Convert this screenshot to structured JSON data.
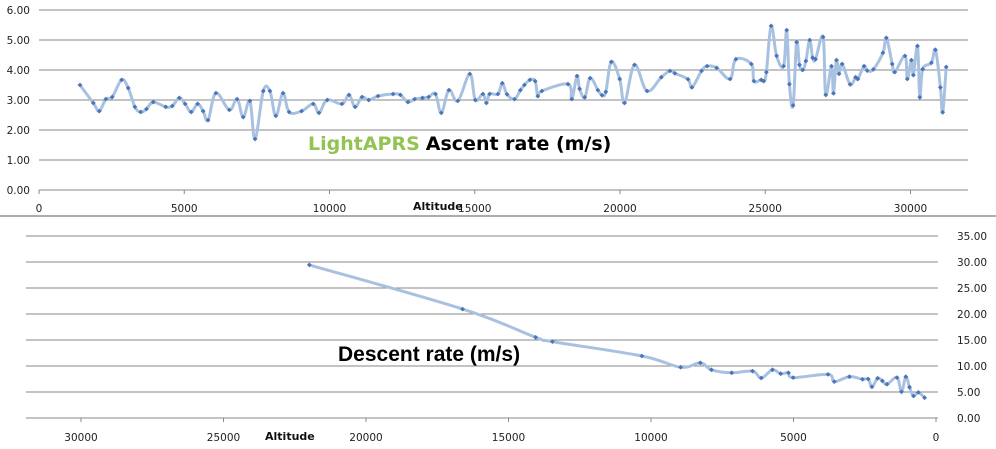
{
  "colors": {
    "line": "#a9c1e0",
    "marker": "#4a76b8",
    "grid": "#878787",
    "title_accent": "#92c353",
    "title": "#000000"
  },
  "chart_data": [
    {
      "type": "line",
      "title_accent": "LightAPRS",
      "title": "Ascent rate (m/s)",
      "xlabel": "Altitude",
      "ylabel": "",
      "xlim": [
        0,
        32000
      ],
      "ylim": [
        0,
        6
      ],
      "x_reversed": false,
      "y_axis_side": "left",
      "grid": true,
      "x_ticks": [
        "0",
        "5000",
        "10000",
        "15000",
        "20000",
        "25000",
        "30000"
      ],
      "x_tick_values": [
        0,
        5000,
        10000,
        15000,
        20000,
        25000,
        30000
      ],
      "y_ticks": [
        "0.00",
        "1.00",
        "2.00",
        "3.00",
        "4.00",
        "5.00",
        "6.00"
      ],
      "y_tick_values": [
        0,
        1,
        2,
        3,
        4,
        5,
        6
      ],
      "x": [
        1410,
        1870,
        2075,
        2300,
        2520,
        2845,
        3070,
        3300,
        3500,
        3700,
        3930,
        4360,
        4590,
        4830,
        5030,
        5240,
        5460,
        5650,
        5820,
        6090,
        6550,
        6820,
        7030,
        7260,
        7440,
        7720,
        7950,
        8150,
        8400,
        8610,
        9040,
        9440,
        9640,
        9920,
        10430,
        10670,
        10880,
        11120,
        11350,
        11670,
        12190,
        12440,
        12700,
        12930,
        13200,
        13410,
        13650,
        13850,
        14110,
        14420,
        14830,
        15020,
        15280,
        15400,
        15510,
        15800,
        15950,
        16110,
        16370,
        16570,
        16710,
        16900,
        17080,
        17170,
        17310,
        18210,
        18340,
        18520,
        18610,
        18790,
        18970,
        19240,
        19380,
        19510,
        19700,
        19990,
        20160,
        20500,
        20930,
        21420,
        21720,
        21890,
        22340,
        22480,
        22810,
        23000,
        23330,
        23790,
        23990,
        24520,
        24610,
        24860,
        24950,
        25040,
        25200,
        25390,
        25630,
        25740,
        25830,
        25960,
        26080,
        26180,
        26290,
        26400,
        26530,
        26630,
        26730,
        26990,
        27080,
        27280,
        27350,
        27450,
        27540,
        27650,
        27920,
        28110,
        28190,
        28400,
        28510,
        28720,
        29050,
        29170,
        29370,
        29460,
        29810,
        29890,
        30030,
        30100,
        30240,
        30320,
        30420,
        30720,
        30860,
        31030,
        31110,
        31230
      ],
      "y": [
        3.5,
        2.9,
        2.63,
        3.03,
        3.1,
        3.67,
        3.4,
        2.77,
        2.6,
        2.7,
        2.93,
        2.77,
        2.8,
        3.07,
        2.87,
        2.6,
        2.87,
        2.63,
        2.33,
        3.23,
        2.67,
        3.03,
        2.43,
        2.97,
        1.7,
        3.3,
        3.3,
        2.47,
        3.23,
        2.6,
        2.63,
        2.87,
        2.57,
        3.0,
        2.87,
        3.17,
        2.77,
        3.1,
        3.0,
        3.13,
        3.2,
        3.17,
        2.93,
        3.03,
        3.07,
        3.1,
        3.2,
        2.57,
        3.33,
        2.97,
        3.87,
        3.0,
        3.2,
        2.9,
        3.2,
        3.2,
        3.56,
        3.19,
        3.03,
        3.33,
        3.5,
        3.67,
        3.63,
        3.13,
        3.3,
        3.53,
        3.03,
        3.8,
        3.37,
        3.09,
        3.73,
        3.33,
        3.16,
        3.27,
        4.27,
        3.7,
        2.9,
        4.17,
        3.3,
        3.76,
        3.97,
        3.89,
        3.69,
        3.42,
        3.97,
        4.13,
        4.07,
        3.7,
        4.36,
        4.2,
        3.63,
        3.67,
        3.63,
        3.93,
        5.47,
        4.47,
        4.13,
        5.33,
        3.53,
        2.82,
        4.93,
        4.17,
        4.0,
        4.3,
        5.0,
        4.41,
        4.36,
        5.1,
        3.17,
        4.13,
        3.22,
        4.33,
        3.87,
        4.2,
        3.52,
        3.76,
        3.7,
        4.13,
        3.98,
        4.02,
        4.57,
        5.07,
        4.2,
        3.93,
        4.47,
        3.7,
        4.33,
        3.83,
        4.8,
        3.09,
        4.03,
        4.24,
        4.67,
        3.42,
        2.59,
        4.1
      ]
    },
    {
      "type": "line",
      "title": "Descent rate (m/s)",
      "xlabel": "Altitude",
      "ylabel": "",
      "xlim": [
        0,
        32000
      ],
      "ylim": [
        0,
        35
      ],
      "x_reversed": true,
      "y_axis_side": "right",
      "grid": true,
      "x_ticks": [
        "30000",
        "25000",
        "20000",
        "15000",
        "10000",
        "5000",
        "0"
      ],
      "x_tick_values": [
        30000,
        25000,
        20000,
        15000,
        10000,
        5000,
        0
      ],
      "y_ticks": [
        "0.00",
        "5.00",
        "10.00",
        "15.00",
        "20.00",
        "25.00",
        "30.00",
        "35.00"
      ],
      "y_tick_values": [
        0,
        5,
        10,
        15,
        20,
        25,
        30,
        35
      ],
      "x": [
        21990,
        16610,
        14050,
        13460,
        10320,
        8960,
        8270,
        7880,
        7170,
        6440,
        6130,
        5740,
        5450,
        5180,
        5010,
        3790,
        3570,
        3040,
        2580,
        2380,
        2250,
        2050,
        1880,
        1720,
        1370,
        1210,
        1060,
        930,
        790,
        620,
        400
      ],
      "y": [
        29.45,
        20.94,
        15.51,
        14.69,
        11.92,
        9.77,
        10.59,
        9.27,
        8.7,
        9.02,
        7.69,
        9.27,
        8.51,
        8.7,
        7.76,
        8.39,
        7.0,
        7.95,
        7.44,
        7.5,
        5.99,
        7.63,
        7.13,
        6.5,
        7.76,
        5.04,
        7.95,
        5.93,
        4.23,
        4.92,
        3.91
      ]
    }
  ]
}
